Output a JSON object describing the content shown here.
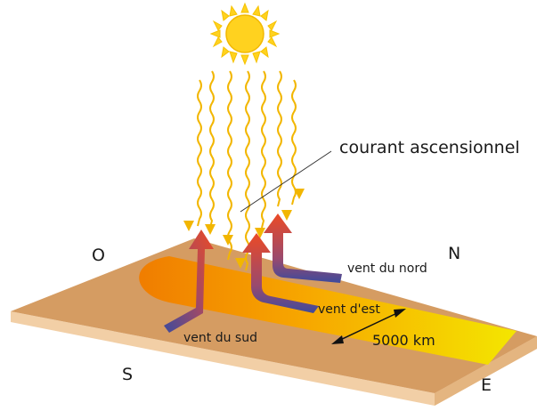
{
  "labels": {
    "updraft": "courant ascensionnel",
    "north_wind": "vent du nord",
    "east_wind": "vent d'est",
    "south_wind": "vent du sud",
    "distance": "5000 km"
  },
  "compass": {
    "west": "O",
    "north": "N",
    "south": "S",
    "east": "E"
  },
  "colors": {
    "ground_top": "#d49a5f",
    "ground_side": "#f3d3ae",
    "ground_front": "#e8bb8a",
    "sun": "#ffd21f",
    "sun_rays": "#f6c200",
    "heat_zone_hot": "#f39200",
    "heat_zone_cool": "#f5e400",
    "arrow_warm": "#e8452b",
    "arrow_cool": "#4a4f9e"
  },
  "icons": {
    "sun": "sun-icon",
    "radiation": "wavy-ray-arrow-icon"
  }
}
